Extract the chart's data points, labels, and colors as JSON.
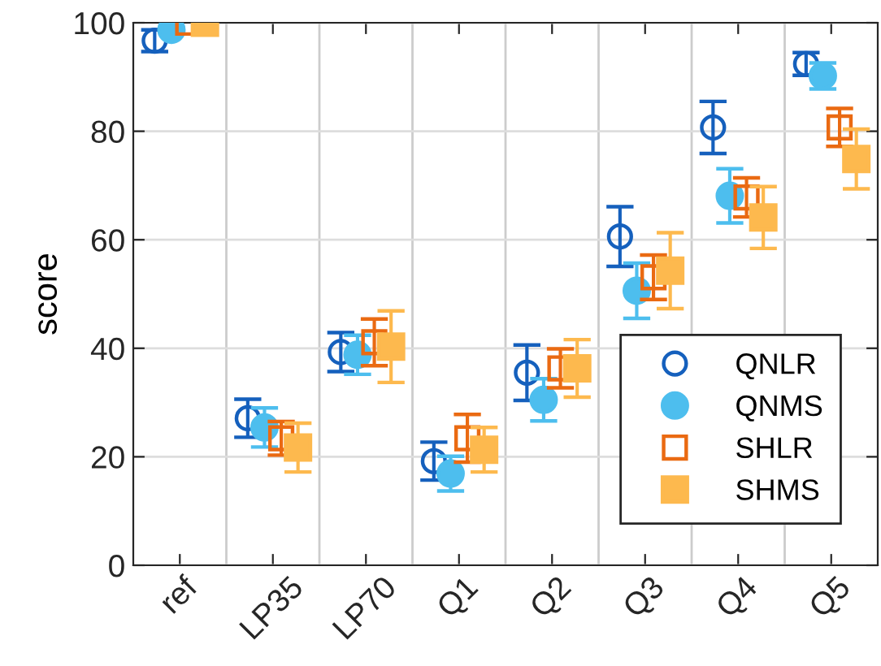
{
  "chart_data": {
    "type": "scatter",
    "ylabel": "score",
    "categories": [
      "ref",
      "LP35",
      "LP70",
      "Q1",
      "Q2",
      "Q3",
      "Q4",
      "Q5"
    ],
    "series": [
      {
        "name": "QNLR",
        "color": "#1560bd",
        "marker": "circle",
        "values": [
          96.7,
          27.1,
          39.3,
          19.2,
          35.5,
          60.6,
          80.7,
          92.4
        ],
        "errors": [
          2.0,
          3.5,
          3.6,
          3.5,
          5.1,
          5.5,
          4.8,
          2.1
        ]
      },
      {
        "name": "QNMS",
        "color": "#4dbeee",
        "marker": "circle",
        "values": [
          98.7,
          25.4,
          38.8,
          16.9,
          30.5,
          50.6,
          68.1,
          90.2
        ],
        "errors": [
          null,
          3.6,
          3.6,
          3.2,
          3.9,
          5.1,
          5.0,
          2.4
        ]
      },
      {
        "name": "SHLR",
        "color": "#ea6a12",
        "marker": "square",
        "values": [
          100,
          23.4,
          41.1,
          23.4,
          36.3,
          53.1,
          67.8,
          80.7
        ],
        "errors": [
          null,
          3.1,
          4.3,
          4.4,
          3.6,
          4.1,
          3.6,
          3.5
        ]
      },
      {
        "name": "SHMS",
        "color": "#fdb94e",
        "marker": "square",
        "values": [
          100,
          21.7,
          40.3,
          21.3,
          36.3,
          54.3,
          64.1,
          74.9
        ],
        "errors": [
          null,
          4.5,
          6.6,
          4.1,
          5.3,
          7.0,
          5.7,
          5.5
        ]
      }
    ],
    "ylim": [
      0,
      100
    ],
    "yticks": [
      0,
      20,
      40,
      60,
      80,
      100
    ],
    "grid": true,
    "legend": "lower right"
  }
}
